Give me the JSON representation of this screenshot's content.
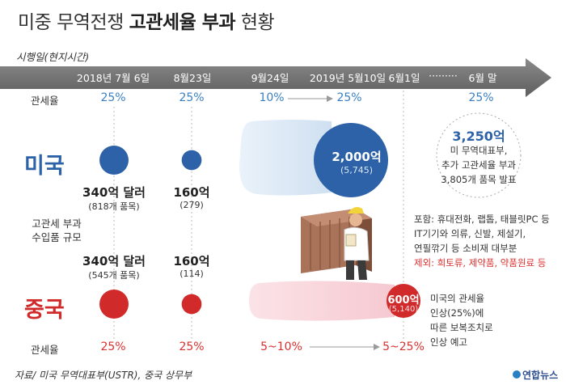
{
  "title": {
    "prefix": "미중 무역전쟁",
    "bold": "고관세율 부과",
    "suffix": "현황"
  },
  "timeline_label": "시행일(현지시간)",
  "row_labels": {
    "tariff_us": "관세율",
    "scale_line1": "고관세 부과",
    "scale_line2": "수입품 규모",
    "tariff_cn": "관세율"
  },
  "countries": {
    "us": "미국",
    "cn": "중국"
  },
  "colors": {
    "us": "#2d62a8",
    "cn": "#d12a2a",
    "us_light": "#d9e7f5",
    "cn_light": "#f9d8dd",
    "arrow": "#6d6d6d"
  },
  "us_note": {
    "amount": "3,250억",
    "line1": "미 무역대표부,",
    "line2": "추가 고관세율 부과",
    "line3": "3,805개 품목 발표"
  },
  "us_items": {
    "line1": "포함: 휴대전화, 랩톱, 태블릿PC 등",
    "line2": "IT기기와 의류, 신발, 제설기,",
    "line3": "연필깎기 등 소비재 대부분",
    "line4": "제외: 희토류, 제약품, 약품원료 등"
  },
  "cn_note": {
    "line1": "미국의 관세율",
    "line2": "인상(25%)에",
    "line3": "따른 보복조치로",
    "line4": "인상 예고"
  },
  "source": "자료/ 미국 무역대표부(USTR), 중국 상무부",
  "brand": "연합뉴스",
  "chart_data": {
    "type": "bubble",
    "title": "미중 무역전쟁 고관세율 부과 현황",
    "units": "억 달러",
    "x": [
      "2018년 7월 6일",
      "8월23일",
      "9월24일",
      "2019년 5월10일",
      "6월1일",
      "·········",
      "6월 말"
    ],
    "us_tariff_rates": [
      "25%",
      "25%",
      "10%",
      "25%",
      "",
      "",
      "25%"
    ],
    "cn_tariff_rates": [
      "25%",
      "25%",
      "5~10%",
      "",
      "5~25%",
      "",
      ""
    ],
    "series": [
      {
        "name": "미국",
        "values": [
          340,
          160,
          2000,
          3250
        ],
        "labels": [
          "340억 달러",
          "160억",
          "2,000억",
          "3,250억"
        ],
        "item_counts": [
          "(818개 품목)",
          "(279)",
          "(5,745)",
          "3,805개 품목"
        ]
      },
      {
        "name": "중국",
        "values": [
          340,
          160,
          600
        ],
        "labels": [
          "340억 달러",
          "160억",
          "600억"
        ],
        "item_counts": [
          "(545개 품목)",
          "(114)",
          "(5,140)"
        ]
      }
    ]
  }
}
